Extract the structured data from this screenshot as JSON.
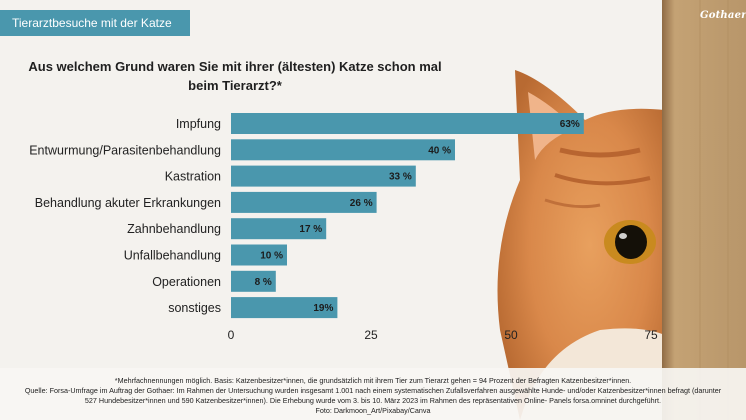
{
  "header": {
    "tag": "Tierarztbesuche mit der Katze",
    "brand": "Gothaer"
  },
  "question": "Aus welchem Grund waren Sie mit ihrer (ältesten) Katze schon mal beim Tierarzt?*",
  "footnotes": {
    "line1": "*Mehrfachnennungen möglich. Basis: Katzenbesitzer*innen, die grundsätzlich mit ihrem Tier zum Tierarzt gehen = 94 Prozent der Befragten Katzenbesitzer*innen.",
    "line2": "Quelle: Forsa-Umfrage im Auftrag der Gothaer: Im Rahmen der Untersuchung wurden insgesamt 1.001 nach einem systematischen Zufallsverfahren ausgewählte Hunde- und/oder Katzenbesitzer*innen befragt (darunter",
    "line3": "527 Hundebesitzer*innen und 590 Katzenbesitzer*innen). Die Erhebung wurde vom 3. bis 10. März 2023 im Rahmen des repräsentativen Online- Panels forsa.omninet durchgeführt.",
    "line4": "Foto: Darkmoon_Art/Pixabay/Canva"
  },
  "colors": {
    "bar": "#4a97ad",
    "tag": "#4a97ad",
    "cat_fur": "#d9884a",
    "cardboard": "#bd9a6c"
  },
  "chart_data": {
    "type": "bar",
    "orientation": "horizontal",
    "categories": [
      "Impfung",
      "Entwurmung/Parasitenbehandlung",
      "Kastration",
      "Behandlung akuter Erkrankungen",
      "Zahnbehandlung",
      "Unfallbehandlung",
      "Operationen",
      "sonstiges"
    ],
    "values": [
      63,
      40,
      33,
      26,
      17,
      10,
      8,
      19
    ],
    "value_labels": [
      "63%",
      "40 %",
      "33 %",
      "26 %",
      "17 %",
      "10 %",
      "8 %",
      "19%"
    ],
    "xlim": [
      0,
      75
    ],
    "xticks": [
      0,
      25,
      50,
      75
    ],
    "grid": false
  }
}
